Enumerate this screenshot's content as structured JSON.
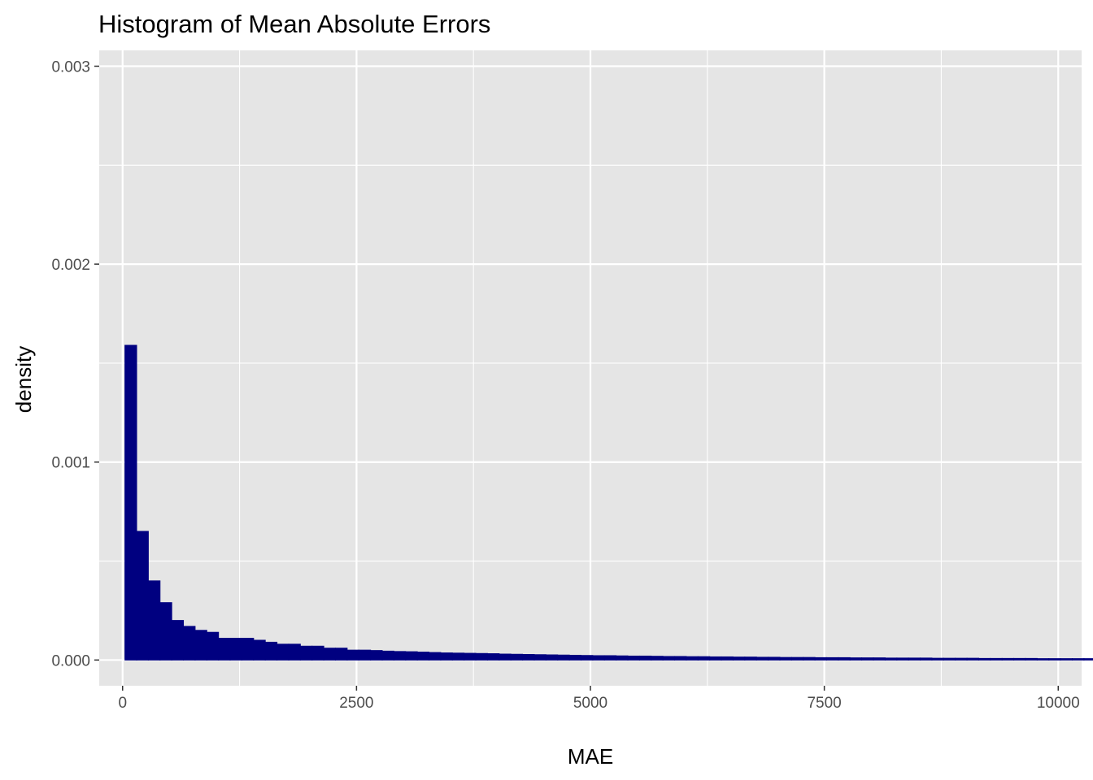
{
  "chart_data": {
    "type": "histogram",
    "title": "Histogram of Mean Absolute Errors",
    "xlabel": "MAE",
    "ylabel": "density",
    "xlim": [
      -250,
      10250
    ],
    "ylim": [
      -0.00013,
      0.00308
    ],
    "x_ticks": [
      0,
      2500,
      5000,
      7500,
      10000
    ],
    "x_tick_labels": [
      "0",
      "2500",
      "5000",
      "7500",
      "10000"
    ],
    "y_ticks": [
      0.0,
      0.001,
      0.002,
      0.003
    ],
    "y_tick_labels": [
      "0.000",
      "0.001",
      "0.002",
      "0.003"
    ],
    "x_minor_ticks": [
      1250,
      3750,
      6250,
      8750
    ],
    "y_minor_ticks": [
      0.0005,
      0.0015,
      0.0025
    ],
    "grid": true,
    "bin_start": 25,
    "bin_width": 125,
    "values": [
      0.00159,
      0.00065,
      0.0004,
      0.00029,
      0.0002,
      0.00017,
      0.00015,
      0.00014,
      0.00011,
      0.00011,
      0.00011,
      0.0001,
      9e-05,
      8e-05,
      8e-05,
      7e-05,
      7e-05,
      6e-05,
      6e-05,
      5e-05,
      5e-05,
      4.8e-05,
      4.5e-05,
      4.3e-05,
      4.2e-05,
      4e-05,
      3.8e-05,
      3.6e-05,
      3.5e-05,
      3.4e-05,
      3.3e-05,
      3.2e-05,
      3e-05,
      2.9e-05,
      2.8e-05,
      2.7e-05,
      2.6e-05,
      2.5e-05,
      2.4e-05,
      2.3e-05,
      2.2e-05,
      2.2e-05,
      2.1e-05,
      2e-05,
      2e-05,
      1.9e-05,
      1.8e-05,
      1.8e-05,
      1.7e-05,
      1.7e-05,
      1.6e-05,
      1.6e-05,
      1.5e-05,
      1.5e-05,
      1.4e-05,
      1.4e-05,
      1.3e-05,
      1.3e-05,
      1.3e-05,
      1.2e-05,
      1.2e-05,
      1.2e-05,
      1.1e-05,
      1.1e-05,
      1.1e-05,
      1e-05,
      1e-05,
      1e-05,
      1e-05,
      9e-06,
      9e-06,
      9e-06,
      9e-06,
      8e-06,
      8e-06,
      8e-06,
      8e-06,
      8e-06,
      7e-06,
      7e-06,
      7e-06,
      7e-06,
      7e-06,
      6e-06,
      6e-06,
      6e-06,
      6e-06,
      6e-06,
      6e-06
    ],
    "fill_color": "#000080",
    "panel_color": "#e5e5e5",
    "grid_color": "#ffffff"
  }
}
